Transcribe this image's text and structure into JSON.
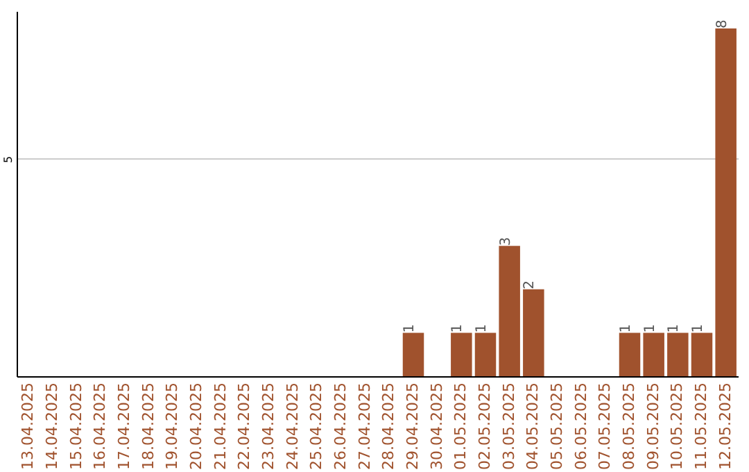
{
  "chart_data": {
    "type": "bar",
    "categories": [
      "13.04.2025",
      "14.04.2025",
      "15.04.2025",
      "16.04.2025",
      "17.04.2025",
      "18.04.2025",
      "19.04.2025",
      "20.04.2025",
      "21.04.2025",
      "22.04.2025",
      "23.04.2025",
      "24.04.2025",
      "25.04.2025",
      "26.04.2025",
      "27.04.2025",
      "28.04.2025",
      "29.04.2025",
      "30.04.2025",
      "01.05.2025",
      "02.05.2025",
      "03.05.2025",
      "04.05.2025",
      "05.05.2025",
      "06.05.2025",
      "07.05.2025",
      "08.05.2025",
      "09.05.2025",
      "10.05.2025",
      "11.05.2025",
      "12.05.2025"
    ],
    "values": [
      null,
      null,
      null,
      null,
      null,
      null,
      null,
      null,
      null,
      null,
      null,
      null,
      null,
      null,
      null,
      null,
      1,
      null,
      1,
      1,
      3,
      2,
      null,
      null,
      null,
      1,
      1,
      1,
      1,
      8
    ],
    "color": "#a0522d",
    "ylim": [
      0,
      8.4
    ],
    "yticks": [
      5
    ],
    "grid": "y",
    "data_labels": true
  }
}
